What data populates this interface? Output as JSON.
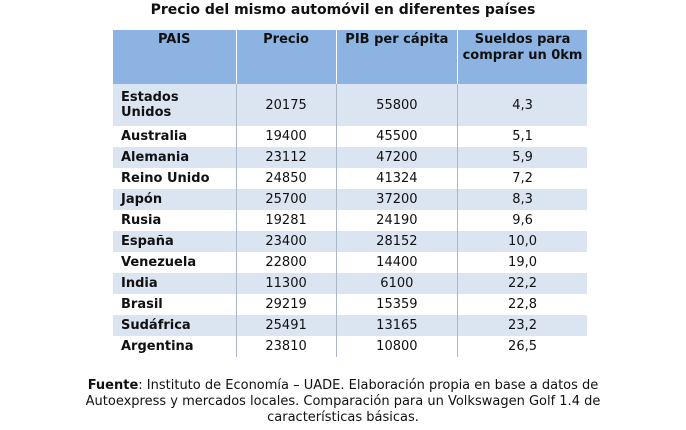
{
  "title": "Precio del mismo automóvil en diferentes países",
  "table": {
    "headers": [
      "PAIS",
      "Precio",
      "PIB per cápita",
      "Sueldos para comprar un 0km"
    ],
    "rows": [
      [
        "Estados Unidos",
        20175,
        55800,
        "4,3"
      ],
      [
        "Australia",
        19400,
        45500,
        "5,1"
      ],
      [
        "Alemania",
        23112,
        47200,
        "5,9"
      ],
      [
        "Reino Unido",
        24850,
        41324,
        "7,2"
      ],
      [
        "Japón",
        25700,
        37200,
        "8,3"
      ],
      [
        "Rusia",
        19281,
        24190,
        "9,6"
      ],
      [
        "España",
        23400,
        28152,
        "10,0"
      ],
      [
        "Venezuela",
        22800,
        14400,
        "19,0"
      ],
      [
        "India",
        11300,
        6100,
        "22,2"
      ],
      [
        "Brasil",
        29219,
        15359,
        "22,8"
      ],
      [
        "Sudáfrica",
        25491,
        13165,
        "23,2"
      ],
      [
        "Argentina",
        23810,
        10800,
        "26,5"
      ]
    ]
  },
  "footer": {
    "label": "Fuente",
    "text": ": Instituto de Economía – UADE. Elaboración propia en base a datos de Autoexpress y mercados locales. Comparación para un Volkswagen Golf 1.4 de características básicas."
  }
}
